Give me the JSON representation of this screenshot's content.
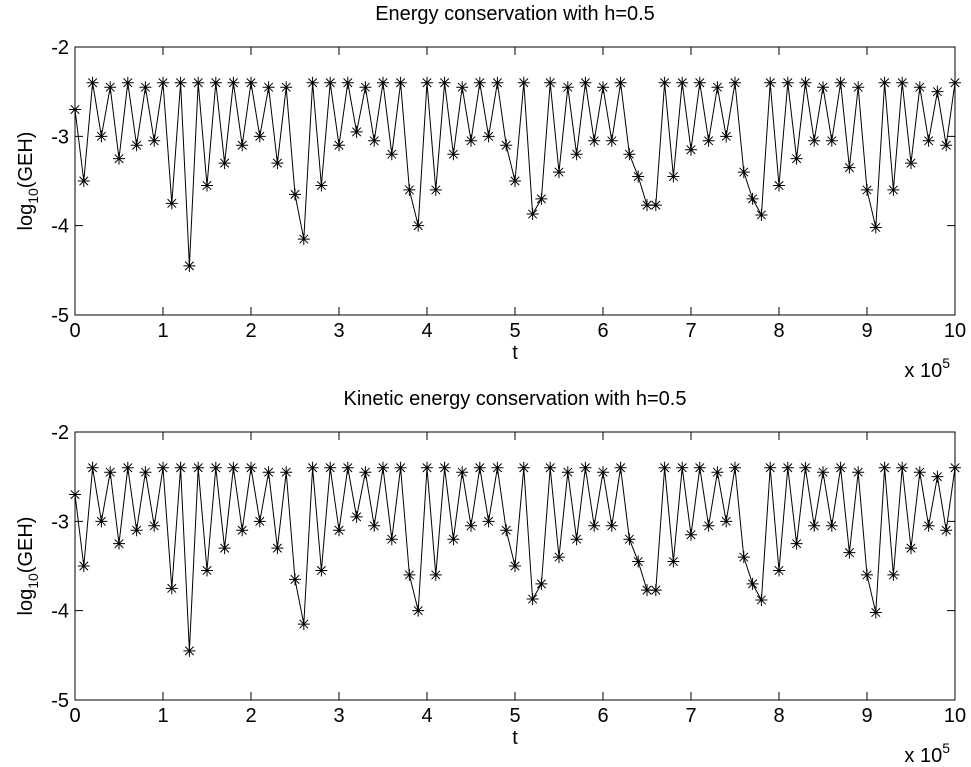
{
  "chart_data": [
    {
      "type": "line",
      "title": "Energy conservation with h=0.5",
      "xlabel": "t",
      "ylabel": {
        "base": "log",
        "sub": "10",
        "rest": "(GEH)"
      },
      "x_multiplier": {
        "base": "x 10",
        "exp": "5"
      },
      "xlim": [
        0,
        1000000
      ],
      "ylim": [
        -5,
        -2
      ],
      "xticks": [
        0,
        {
          "value": 100000,
          "label": "1"
        },
        {
          "value": 200000,
          "label": "2"
        },
        {
          "value": 300000,
          "label": "3"
        },
        {
          "value": 400000,
          "label": "4"
        },
        {
          "value": 500000,
          "label": "5"
        },
        {
          "value": 600000,
          "label": "6"
        },
        {
          "value": 700000,
          "label": "7"
        },
        {
          "value": 800000,
          "label": "8"
        },
        {
          "value": 900000,
          "label": "9"
        },
        {
          "value": 1000000,
          "label": "10"
        }
      ],
      "yticks": [
        -5,
        -4,
        -3,
        -2
      ],
      "x": [
        0,
        10000,
        20000,
        30000,
        40000,
        50000,
        60000,
        70000,
        80000,
        90000,
        100000,
        110000,
        120000,
        130000,
        140000,
        150000,
        160000,
        170000,
        180000,
        190000,
        200000,
        210000,
        220000,
        230000,
        240000,
        250000,
        260000,
        270000,
        280000,
        290000,
        300000,
        310000,
        320000,
        330000,
        340000,
        350000,
        360000,
        370000,
        380000,
        390000,
        400000,
        410000,
        420000,
        430000,
        440000,
        450000,
        460000,
        470000,
        480000,
        490000,
        500000,
        510000,
        520000,
        530000,
        540000,
        550000,
        560000,
        570000,
        580000,
        590000,
        600000,
        610000,
        620000,
        630000,
        640000,
        650000,
        660000,
        670000,
        680000,
        690000,
        700000,
        710000,
        720000,
        730000,
        740000,
        750000,
        760000,
        770000,
        780000,
        790000,
        800000,
        810000,
        820000,
        830000,
        840000,
        850000,
        860000,
        870000,
        880000,
        890000,
        900000,
        910000,
        920000,
        930000,
        940000,
        950000,
        960000,
        970000,
        980000,
        990000,
        1000000
      ],
      "series": [
        {
          "name": "GEH",
          "color": "#000000",
          "values": [
            -2.7,
            -3.5,
            -2.4,
            -3.0,
            -2.45,
            -3.25,
            -2.4,
            -3.1,
            -2.45,
            -3.05,
            -2.4,
            -3.75,
            -2.4,
            -4.45,
            -2.4,
            -3.55,
            -2.4,
            -3.3,
            -2.4,
            -3.1,
            -2.4,
            -3.0,
            -2.45,
            -3.3,
            -2.45,
            -3.65,
            -4.15,
            -2.4,
            -3.55,
            -2.4,
            -3.1,
            -2.4,
            -2.95,
            -2.45,
            -3.05,
            -2.4,
            -3.2,
            -2.4,
            -3.6,
            -4.0,
            -2.4,
            -3.6,
            -2.4,
            -3.2,
            -2.45,
            -3.05,
            -2.4,
            -3.0,
            -2.4,
            -3.1,
            -3.5,
            -2.4,
            -3.87,
            -3.7,
            -2.4,
            -3.4,
            -2.45,
            -3.2,
            -2.4,
            -3.05,
            -2.45,
            -3.05,
            -2.4,
            -3.2,
            -3.45,
            -3.77,
            -3.77,
            -2.4,
            -3.45,
            -2.4,
            -3.15,
            -2.4,
            -3.05,
            -2.45,
            -3.0,
            -2.4,
            -3.4,
            -3.7,
            -3.88,
            -2.4,
            -3.55,
            -2.4,
            -3.25,
            -2.4,
            -3.05,
            -2.45,
            -3.05,
            -2.4,
            -3.35,
            -2.45,
            -3.6,
            -4.02,
            -2.4,
            -3.6,
            -2.4,
            -3.3,
            -2.45,
            -3.05,
            -2.5,
            -3.1,
            -2.4
          ]
        }
      ]
    },
    {
      "type": "line",
      "title": "Kinetic energy conservation with h=0.5",
      "xlabel": "t",
      "ylabel": {
        "base": "log",
        "sub": "10",
        "rest": "(GEH)"
      },
      "x_multiplier": {
        "base": "x 10",
        "exp": "5"
      },
      "xlim": [
        0,
        1000000
      ],
      "ylim": [
        -5,
        -2
      ],
      "xticks": [
        0,
        {
          "value": 100000,
          "label": "1"
        },
        {
          "value": 200000,
          "label": "2"
        },
        {
          "value": 300000,
          "label": "3"
        },
        {
          "value": 400000,
          "label": "4"
        },
        {
          "value": 500000,
          "label": "5"
        },
        {
          "value": 600000,
          "label": "6"
        },
        {
          "value": 700000,
          "label": "7"
        },
        {
          "value": 800000,
          "label": "8"
        },
        {
          "value": 900000,
          "label": "9"
        },
        {
          "value": 1000000,
          "label": "10"
        }
      ],
      "yticks": [
        -5,
        -4,
        -3,
        -2
      ],
      "x": [
        0,
        10000,
        20000,
        30000,
        40000,
        50000,
        60000,
        70000,
        80000,
        90000,
        100000,
        110000,
        120000,
        130000,
        140000,
        150000,
        160000,
        170000,
        180000,
        190000,
        200000,
        210000,
        220000,
        230000,
        240000,
        250000,
        260000,
        270000,
        280000,
        290000,
        300000,
        310000,
        320000,
        330000,
        340000,
        350000,
        360000,
        370000,
        380000,
        390000,
        400000,
        410000,
        420000,
        430000,
        440000,
        450000,
        460000,
        470000,
        480000,
        490000,
        500000,
        510000,
        520000,
        530000,
        540000,
        550000,
        560000,
        570000,
        580000,
        590000,
        600000,
        610000,
        620000,
        630000,
        640000,
        650000,
        660000,
        670000,
        680000,
        690000,
        700000,
        710000,
        720000,
        730000,
        740000,
        750000,
        760000,
        770000,
        780000,
        790000,
        800000,
        810000,
        820000,
        830000,
        840000,
        850000,
        860000,
        870000,
        880000,
        890000,
        900000,
        910000,
        920000,
        930000,
        940000,
        950000,
        960000,
        970000,
        980000,
        990000,
        1000000
      ],
      "series": [
        {
          "name": "GEH",
          "color": "#000000",
          "values": [
            -2.7,
            -3.5,
            -2.4,
            -3.0,
            -2.45,
            -3.25,
            -2.4,
            -3.1,
            -2.45,
            -3.05,
            -2.4,
            -3.75,
            -2.4,
            -4.45,
            -2.4,
            -3.55,
            -2.4,
            -3.3,
            -2.4,
            -3.1,
            -2.4,
            -3.0,
            -2.45,
            -3.3,
            -2.45,
            -3.65,
            -4.15,
            -2.4,
            -3.55,
            -2.4,
            -3.1,
            -2.4,
            -2.95,
            -2.45,
            -3.05,
            -2.4,
            -3.2,
            -2.4,
            -3.6,
            -4.0,
            -2.4,
            -3.6,
            -2.4,
            -3.2,
            -2.45,
            -3.05,
            -2.4,
            -3.0,
            -2.4,
            -3.1,
            -3.5,
            -2.4,
            -3.87,
            -3.7,
            -2.4,
            -3.4,
            -2.45,
            -3.2,
            -2.4,
            -3.05,
            -2.45,
            -3.05,
            -2.4,
            -3.2,
            -3.45,
            -3.77,
            -3.77,
            -2.4,
            -3.45,
            -2.4,
            -3.15,
            -2.4,
            -3.05,
            -2.45,
            -3.0,
            -2.4,
            -3.4,
            -3.7,
            -3.88,
            -2.4,
            -3.55,
            -2.4,
            -3.25,
            -2.4,
            -3.05,
            -2.45,
            -3.05,
            -2.4,
            -3.35,
            -2.45,
            -3.6,
            -4.02,
            -2.4,
            -3.6,
            -2.4,
            -3.3,
            -2.45,
            -3.05,
            -2.5,
            -3.1,
            -2.4
          ]
        }
      ]
    }
  ]
}
